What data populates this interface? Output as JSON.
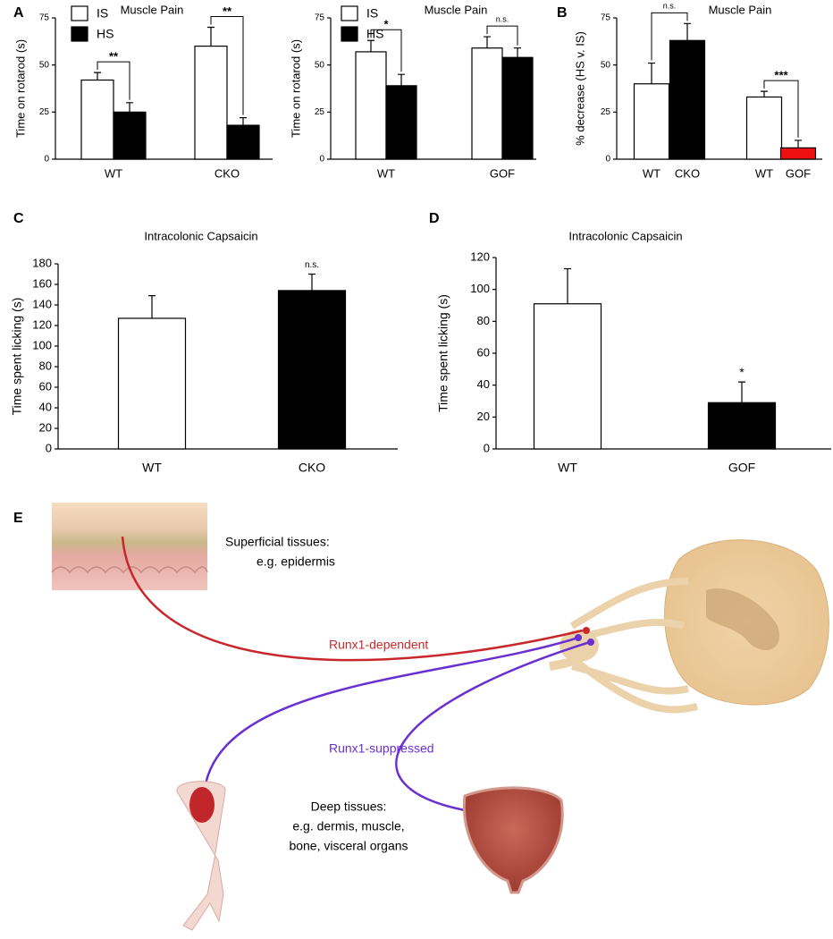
{
  "chart_data": [
    {
      "type": "grouped-bar",
      "panel_label": "A",
      "title": "Muscle Pain",
      "y_label": "Time on rotarod (s)",
      "categories": [
        "WT",
        "CKO"
      ],
      "series": [
        {
          "name": "IS",
          "color": "#ffffff",
          "values": [
            42,
            60
          ],
          "errors": [
            4,
            10
          ]
        },
        {
          "name": "HS",
          "color": "#000000",
          "values": [
            25,
            18
          ],
          "errors": [
            5,
            4
          ]
        }
      ],
      "annotations": [
        "**",
        "**"
      ],
      "ylim": [
        0,
        75
      ],
      "yticks": [
        0,
        25,
        50,
        75
      ],
      "grid": false,
      "legend": "top-left"
    },
    {
      "type": "grouped-bar",
      "title": "Muscle Pain",
      "y_label": "Time on rotarod (s)",
      "categories": [
        "WT",
        "GOF"
      ],
      "series": [
        {
          "name": "IS",
          "color": "#ffffff",
          "values": [
            57,
            59
          ],
          "errors": [
            6,
            6
          ]
        },
        {
          "name": "HS",
          "color": "#000000",
          "values": [
            39,
            54
          ],
          "errors": [
            6,
            5
          ]
        }
      ],
      "annotations": [
        "*",
        "n.s."
      ],
      "ylim": [
        0,
        75
      ],
      "yticks": [
        0,
        25,
        50,
        75
      ],
      "grid": false,
      "legend": "top-left"
    },
    {
      "type": "paired-bar",
      "panel_label": "B",
      "title": "Muscle Pain",
      "y_label": "% decrease (HS v. IS)",
      "categories": [
        "WT",
        "CKO",
        "WT",
        "GOF"
      ],
      "values": [
        40,
        63,
        33,
        6
      ],
      "errors": [
        11,
        9,
        3,
        4
      ],
      "colors": [
        "#ffffff",
        "#000000",
        "#ffffff",
        "#ee1111"
      ],
      "annotations": [
        "n.s.",
        "***"
      ],
      "ylim": [
        0,
        75
      ],
      "yticks": [
        0,
        25,
        50,
        75
      ],
      "grid": false
    },
    {
      "type": "bar",
      "panel_label": "C",
      "title": "Intracolonic Capsaicin",
      "y_label": "Time spent licking (s)",
      "categories": [
        "WT",
        "CKO"
      ],
      "values": [
        127,
        154
      ],
      "errors": [
        22,
        16
      ],
      "colors": [
        "#ffffff",
        "#000000"
      ],
      "annotations": [
        null,
        "n.s."
      ],
      "ylim": [
        0,
        180
      ],
      "yticks": [
        0,
        20,
        40,
        60,
        80,
        100,
        120,
        140,
        160,
        180
      ],
      "grid": false
    },
    {
      "type": "bar",
      "panel_label": "D",
      "title": "Intracolonic Capsaicin",
      "y_label": "Time spent licking (s)",
      "categories": [
        "WT",
        "GOF"
      ],
      "values": [
        91,
        29
      ],
      "errors": [
        22,
        13
      ],
      "colors": [
        "#ffffff",
        "#000000"
      ],
      "annotations": [
        null,
        "*"
      ],
      "ylim": [
        0,
        120
      ],
      "yticks": [
        0,
        20,
        40,
        60,
        80,
        100,
        120
      ],
      "grid": false
    }
  ],
  "diagram": {
    "panel_label": "E",
    "superficial": [
      "Superficial tissues:",
      "e.g. epidermis"
    ],
    "dependent": "Runx1-dependent",
    "suppressed": "Runx1-suppressed",
    "deep": [
      "Deep tissues:",
      "e.g. dermis, muscle,",
      "bone, visceral organs"
    ]
  }
}
